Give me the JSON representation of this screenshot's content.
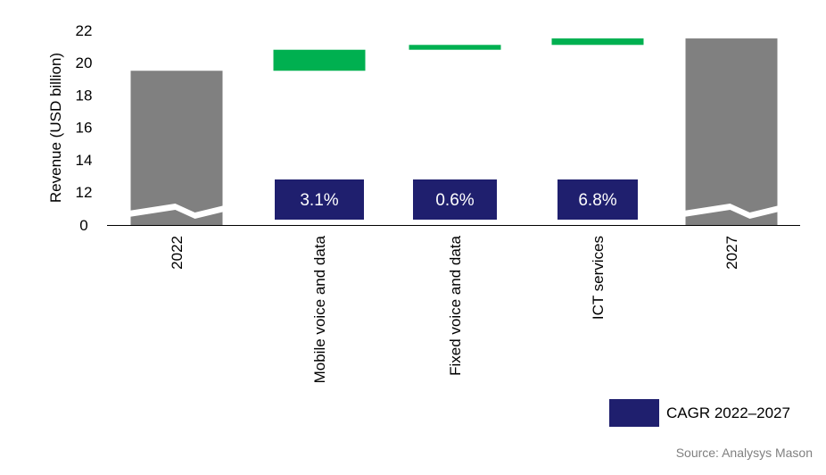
{
  "chart_data": {
    "type": "bar",
    "subtype": "waterfall",
    "ylabel": "Revenue (USD billion)",
    "yticks": [
      0,
      12,
      14,
      16,
      18,
      20,
      22
    ],
    "ylim": [
      0,
      22
    ],
    "axis_break": true,
    "grid": false,
    "categories": [
      "2022",
      "Mobile voice and data",
      "Fixed voice and data",
      "ICT services",
      "2027"
    ],
    "bars": [
      {
        "category": "2022",
        "kind": "total",
        "value": 19.5,
        "color": "#808080"
      },
      {
        "category": "Mobile voice and data",
        "kind": "increment",
        "start": 19.5,
        "end": 20.8,
        "color": "#00b050",
        "cagr": "3.1%"
      },
      {
        "category": "Fixed voice and data",
        "kind": "increment",
        "start": 20.8,
        "end": 21.1,
        "color": "#00b050",
        "cagr": "0.6%"
      },
      {
        "category": "ICT services",
        "kind": "increment",
        "start": 21.1,
        "end": 21.5,
        "color": "#00b050",
        "cagr": "6.8%"
      },
      {
        "category": "2027",
        "kind": "total",
        "value": 21.5,
        "color": "#808080"
      }
    ],
    "legend": {
      "label": "CAGR 2022–2027",
      "color": "#1f1f6e",
      "position": "bottom-right"
    },
    "source": "Source: Analysys Mason"
  }
}
